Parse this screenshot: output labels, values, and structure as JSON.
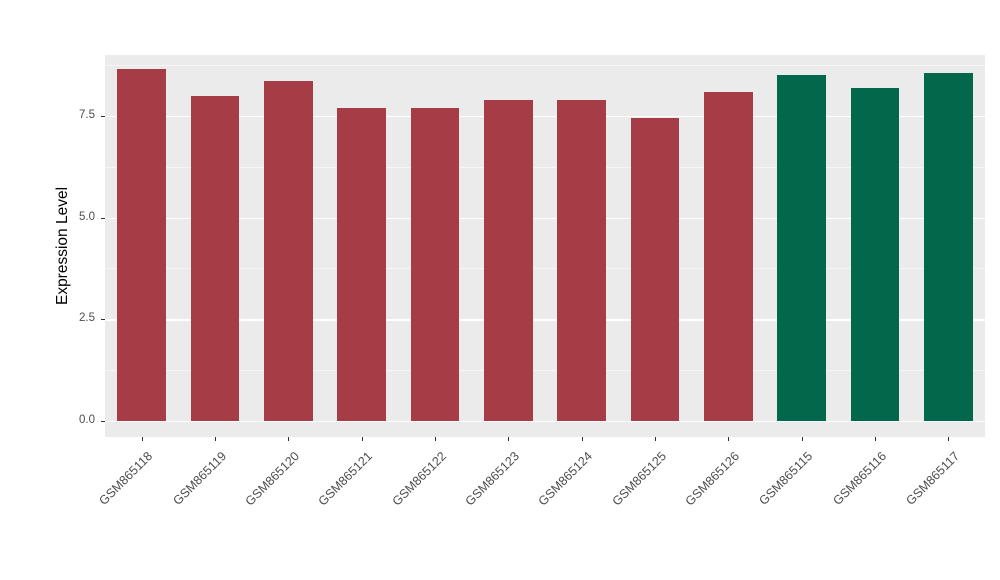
{
  "chart_data": {
    "type": "bar",
    "title": "",
    "xlabel": "",
    "ylabel": "Expression Level",
    "categories": [
      "GSM865118",
      "GSM865119",
      "GSM865120",
      "GSM865121",
      "GSM865122",
      "GSM865123",
      "GSM865124",
      "GSM865125",
      "GSM865126",
      "GSM865115",
      "GSM865116",
      "GSM865117"
    ],
    "values": [
      8.65,
      8.0,
      8.35,
      7.7,
      7.7,
      7.9,
      7.9,
      7.45,
      8.1,
      8.5,
      8.2,
      8.55
    ],
    "groups": [
      "A",
      "A",
      "A",
      "A",
      "A",
      "A",
      "A",
      "A",
      "A",
      "B",
      "B",
      "B"
    ],
    "group_colors": {
      "A": "#A53C46",
      "B": "#03684B"
    },
    "yticks": [
      0,
      2.5,
      5.0,
      7.5
    ],
    "ytick_labels": [
      "0.0",
      "2.5",
      "5.0",
      "7.5"
    ],
    "minor_ticks": [
      1.25,
      3.75,
      6.25,
      8.75
    ],
    "ylim": [
      -0.4,
      9.0
    ],
    "grid": true,
    "legend": "none",
    "panel_bg": "#EBEBEB",
    "grid_color": "#FFFFFF",
    "axis_text_color": "#4D4D4D"
  }
}
